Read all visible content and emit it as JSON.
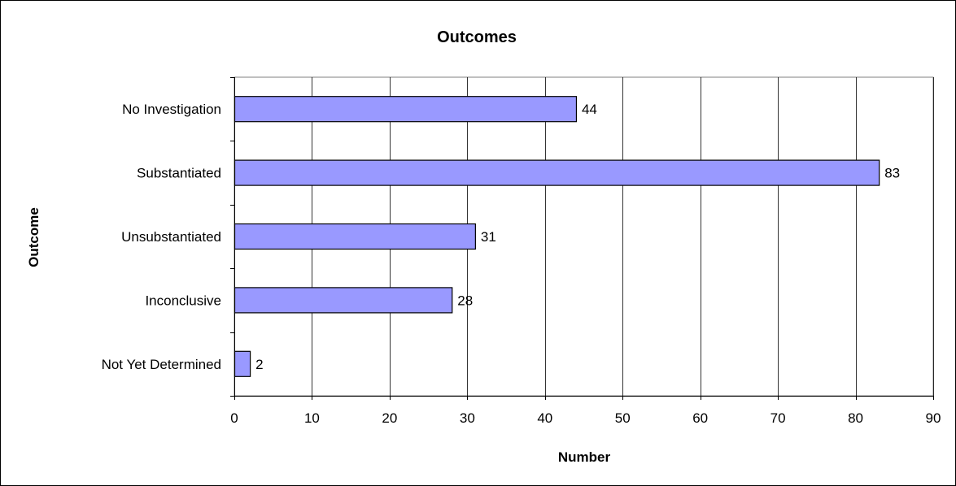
{
  "chart_data": {
    "type": "bar",
    "orientation": "horizontal",
    "title": "Outcomes",
    "xlabel": "Number",
    "ylabel": "Outcome",
    "categories": [
      "No Investigation",
      "Substantiated",
      "Unsubstantiated",
      "Inconclusive",
      "Not Yet Determined"
    ],
    "values": [
      44,
      83,
      31,
      28,
      2
    ],
    "xlim": [
      0,
      90
    ],
    "x_ticks": [
      0,
      10,
      20,
      30,
      40,
      50,
      60,
      70,
      80,
      90
    ],
    "grid": "vertical",
    "legend": "none",
    "bar_color": "#9999ff",
    "data_labels": true
  }
}
